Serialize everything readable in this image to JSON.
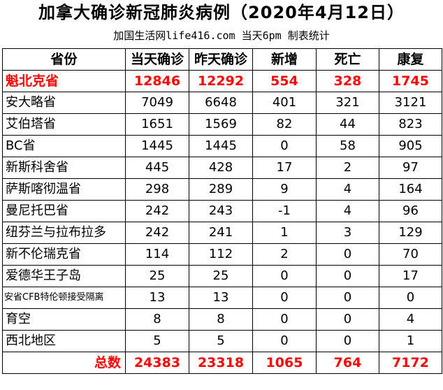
{
  "title": "加拿大确诊新冠肺炎病例（2020年4月12日）",
  "subtitle": "加国生活网life416.com 当天6pm 制表统计",
  "columns": [
    "省份",
    "当天确诊",
    "昨天确诊",
    "新增",
    "死亡",
    "康复"
  ],
  "rows": [
    [
      "魁北克省",
      "12846",
      "12292",
      "554",
      "328",
      "1745"
    ],
    [
      "安大略省",
      "7049",
      "6648",
      "401",
      "321",
      "3121"
    ],
    [
      "艾伯塔省",
      "1651",
      "1569",
      "82",
      "44",
      "823"
    ],
    [
      "BC省",
      "1445",
      "1445",
      "0",
      "58",
      "905"
    ],
    [
      "新斯科舍省",
      "445",
      "428",
      "17",
      "2",
      "97"
    ],
    [
      "萨斯喀彻温省",
      "298",
      "289",
      "9",
      "4",
      "164"
    ],
    [
      "曼尼托巴省",
      "242",
      "243",
      "-1",
      "4",
      "96"
    ],
    [
      "纽芬兰与拉布拉多",
      "242",
      "241",
      "1",
      "3",
      "129"
    ],
    [
      "新不伦瑞克省",
      "114",
      "112",
      "2",
      "0",
      "70"
    ],
    [
      "爱德华王子岛",
      "25",
      "25",
      "0",
      "0",
      "17"
    ],
    [
      "安省CFB特伦顿接受隔离",
      "13",
      "13",
      "0",
      "0",
      "0"
    ],
    [
      "育空",
      "8",
      "8",
      "0",
      "0",
      "4"
    ],
    [
      "西北地区",
      "5",
      "5",
      "0",
      "0",
      "1"
    ]
  ],
  "total": [
    "总数",
    "24383",
    "23318",
    "1065",
    "764",
    "7172"
  ],
  "highlight_color": "#ff0000"
}
